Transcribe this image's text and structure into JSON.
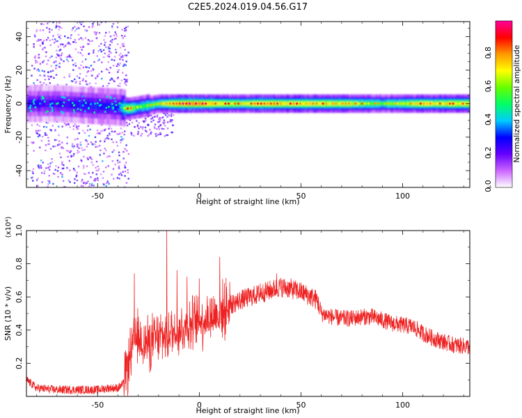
{
  "figure": {
    "title": "C2E5.2024.019.04.56.G17"
  },
  "chart_data": [
    {
      "type": "heatmap",
      "xlabel": "Height of straight line (km)",
      "ylabel": "Frequency (Hz)",
      "xlim": [
        -85,
        133
      ],
      "ylim": [
        -50,
        49
      ],
      "xticks": [
        -50,
        0,
        50,
        100
      ],
      "yticks": [
        -40,
        -20,
        0,
        20,
        40
      ],
      "grid": false,
      "colorbar": {
        "label": "Normalized spectral amplitude",
        "range": [
          0,
          1
        ],
        "ticks": [
          0.0,
          0.2,
          0.4,
          0.6,
          0.8
        ],
        "tick_labels": [
          "0.0",
          "0.2",
          "0.4",
          "0.6",
          "0.8"
        ],
        "colormap": "rainbow",
        "colors": [
          "#ffffff",
          "#cc66ff",
          "#6600ff",
          "#0000ff",
          "#00ccff",
          "#00ff66",
          "#66ff00",
          "#ffff00",
          "#ff9900",
          "#ff0000",
          "#ff0099"
        ]
      },
      "series": [
        {
          "kind": "band_profile",
          "x": [
            -85,
            -70,
            -55,
            -40,
            -35,
            -30,
            -20,
            -10,
            0,
            10,
            20,
            30,
            50,
            70,
            90,
            110,
            133
          ],
          "center_hz": [
            0,
            0,
            -1,
            -2,
            -3,
            -2,
            0,
            0,
            0,
            0,
            0,
            0,
            0,
            0,
            0,
            0,
            0
          ],
          "amplitude": [
            0.3,
            0.3,
            0.35,
            0.35,
            0.8,
            0.6,
            0.7,
            0.9,
            0.9,
            0.8,
            0.75,
            0.85,
            0.8,
            0.8,
            0.65,
            0.8,
            0.8
          ]
        }
      ]
    },
    {
      "type": "line",
      "xlabel": "Height of straight line (km)",
      "ylabel": "SNR (10 * v/v)",
      "y_multiplier_label": "(x10⁴)",
      "xlim": [
        -85,
        133
      ],
      "ylim": [
        0,
        1.0
      ],
      "xticks": [
        -50,
        0,
        50,
        100
      ],
      "yticks": [
        0.2,
        0.4,
        0.6,
        0.8,
        1.0
      ],
      "ytick_labels": [
        "0.2",
        "0.4",
        "0.6",
        "0.8",
        "1.0"
      ],
      "grid": false,
      "color": "#ee2222",
      "series": [
        {
          "x": [
            -85,
            -80,
            -70,
            -60,
            -50,
            -45,
            -40,
            -37,
            -35,
            -33,
            -31,
            -28,
            -25,
            -20,
            -15,
            -10,
            -5,
            0,
            5,
            10,
            15,
            20,
            25,
            30,
            35,
            40,
            45,
            50,
            55,
            58,
            60,
            65,
            70,
            75,
            80,
            85,
            90,
            95,
            100,
            105,
            110,
            115,
            120,
            125,
            133
          ],
          "y": [
            0.1,
            0.05,
            0.04,
            0.04,
            0.04,
            0.05,
            0.05,
            0.08,
            0.2,
            0.28,
            0.35,
            0.33,
            0.32,
            0.35,
            0.38,
            0.4,
            0.43,
            0.45,
            0.48,
            0.5,
            0.55,
            0.58,
            0.6,
            0.62,
            0.64,
            0.66,
            0.65,
            0.63,
            0.6,
            0.58,
            0.5,
            0.48,
            0.47,
            0.47,
            0.48,
            0.48,
            0.46,
            0.44,
            0.43,
            0.42,
            0.38,
            0.35,
            0.33,
            0.31,
            0.3
          ],
          "spikes": [
            {
              "x": -32,
              "y": 0.74
            },
            {
              "x": -29,
              "y": 0.45
            },
            {
              "x": -16,
              "y": 1.0
            },
            {
              "x": -11,
              "y": 0.76
            },
            {
              "x": -6,
              "y": 0.72
            },
            {
              "x": 0,
              "y": 0.71
            },
            {
              "x": 10,
              "y": 0.84
            },
            {
              "x": 15,
              "y": 0.69
            },
            {
              "x": 30,
              "y": 0.68
            },
            {
              "x": 38,
              "y": 0.74
            }
          ]
        }
      ]
    }
  ]
}
